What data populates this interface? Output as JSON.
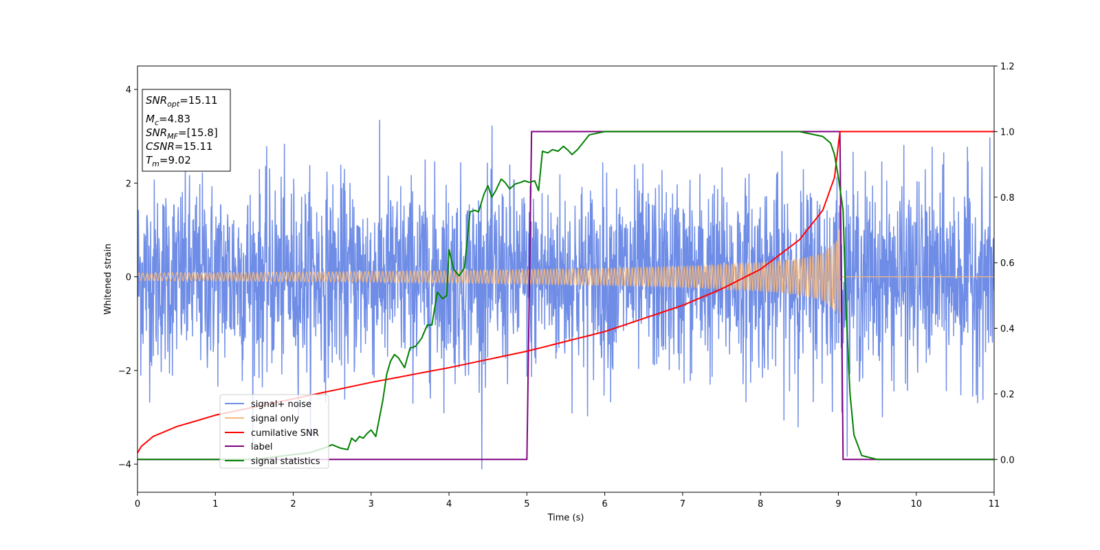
{
  "chart_data": {
    "type": "line",
    "xlabel": "Time (s)",
    "ylabel": "Whitened strain",
    "xlim": [
      0,
      11
    ],
    "ylim_left": [
      -4.6,
      4.5
    ],
    "ylim_right": [
      -0.1,
      1.2
    ],
    "x_ticks": [
      "0",
      "1",
      "2",
      "3",
      "4",
      "5",
      "6",
      "7",
      "8",
      "9",
      "10",
      "11"
    ],
    "y_left_ticks": [
      "4",
      "2",
      "0",
      "−2",
      "−4"
    ],
    "y_left_tick_values": [
      4,
      2,
      0,
      -2,
      -4
    ],
    "y_right_ticks": [
      "1.2",
      "1.0",
      "0.8",
      "0.6",
      "0.4",
      "0.2",
      "0.0"
    ],
    "y_right_tick_values": [
      1.2,
      1.0,
      0.8,
      0.6,
      0.4,
      0.2,
      0.0
    ],
    "info_box": {
      "snr_opt": {
        "main": "SNR",
        "sub": "opt",
        "value": "=15.11"
      },
      "mc": {
        "main": "M",
        "sub": "c",
        "value": "=4.83"
      },
      "snr_mf": {
        "main": "SNR",
        "sub": "MF",
        "value": "=[15.8]"
      },
      "csnr": {
        "main": "CSNR",
        "sub": "",
        "value": "=15.11"
      },
      "tm": {
        "main": "T",
        "sub": "m",
        "value": "=9.02"
      }
    },
    "legend_position": "lower-left",
    "series": [
      {
        "name": "signal+ noise",
        "color": "#6f8de6",
        "axis": "left",
        "description_values": {
          "std": 1.0,
          "x_range": [
            0,
            11
          ]
        }
      },
      {
        "name": "signal only",
        "color": "#f5b77a",
        "axis": "left",
        "envelope": {
          "t": [
            0,
            2,
            4,
            6,
            7,
            8,
            8.5,
            8.8,
            9.0,
            9.02
          ],
          "amp": [
            0.08,
            0.1,
            0.13,
            0.18,
            0.22,
            0.3,
            0.38,
            0.5,
            0.8,
            1.3
          ]
        },
        "end_time": 9.02
      },
      {
        "name": "cumilative SNR",
        "color": "#ff0000",
        "axis": "right",
        "points": [
          [
            0,
            0.02
          ],
          [
            0.05,
            0.04
          ],
          [
            0.2,
            0.07
          ],
          [
            0.5,
            0.1
          ],
          [
            1,
            0.135
          ],
          [
            1.5,
            0.16
          ],
          [
            2,
            0.185
          ],
          [
            3,
            0.235
          ],
          [
            4,
            0.28
          ],
          [
            5,
            0.33
          ],
          [
            6,
            0.39
          ],
          [
            7,
            0.47
          ],
          [
            7.5,
            0.52
          ],
          [
            8,
            0.58
          ],
          [
            8.5,
            0.67
          ],
          [
            8.8,
            0.76
          ],
          [
            8.95,
            0.86
          ],
          [
            9.02,
            1.0
          ],
          [
            11,
            1.0
          ]
        ]
      },
      {
        "name": "label",
        "color": "#800080",
        "axis": "right",
        "points": [
          [
            0,
            0.0
          ],
          [
            5.0,
            0.0
          ],
          [
            5.06,
            1.0
          ],
          [
            9.02,
            1.0
          ],
          [
            9.06,
            0.0
          ],
          [
            11,
            0.0
          ]
        ]
      },
      {
        "name": "signal statistics",
        "color": "#008000",
        "axis": "right",
        "points": [
          [
            0,
            0.0
          ],
          [
            0.5,
            0.0
          ],
          [
            1.0,
            0.0
          ],
          [
            1.5,
            0.0
          ],
          [
            2.0,
            0.015
          ],
          [
            2.2,
            0.02
          ],
          [
            2.4,
            0.035
          ],
          [
            2.5,
            0.045
          ],
          [
            2.6,
            0.035
          ],
          [
            2.7,
            0.03
          ],
          [
            2.75,
            0.065
          ],
          [
            2.8,
            0.055
          ],
          [
            2.85,
            0.07
          ],
          [
            2.9,
            0.065
          ],
          [
            2.95,
            0.08
          ],
          [
            3.0,
            0.09
          ],
          [
            3.06,
            0.07
          ],
          [
            3.15,
            0.18
          ],
          [
            3.2,
            0.26
          ],
          [
            3.25,
            0.3
          ],
          [
            3.3,
            0.32
          ],
          [
            3.35,
            0.31
          ],
          [
            3.43,
            0.28
          ],
          [
            3.5,
            0.34
          ],
          [
            3.57,
            0.345
          ],
          [
            3.65,
            0.37
          ],
          [
            3.72,
            0.41
          ],
          [
            3.78,
            0.41
          ],
          [
            3.85,
            0.51
          ],
          [
            3.92,
            0.49
          ],
          [
            3.97,
            0.5
          ],
          [
            4.0,
            0.64
          ],
          [
            4.06,
            0.58
          ],
          [
            4.13,
            0.56
          ],
          [
            4.2,
            0.585
          ],
          [
            4.27,
            0.755
          ],
          [
            4.33,
            0.76
          ],
          [
            4.38,
            0.755
          ],
          [
            4.45,
            0.81
          ],
          [
            4.5,
            0.835
          ],
          [
            4.55,
            0.8
          ],
          [
            4.6,
            0.82
          ],
          [
            4.67,
            0.855
          ],
          [
            4.72,
            0.845
          ],
          [
            4.78,
            0.825
          ],
          [
            4.85,
            0.84
          ],
          [
            4.92,
            0.845
          ],
          [
            4.97,
            0.85
          ],
          [
            5.03,
            0.845
          ],
          [
            5.1,
            0.85
          ],
          [
            5.15,
            0.82
          ],
          [
            5.2,
            0.94
          ],
          [
            5.27,
            0.935
          ],
          [
            5.33,
            0.945
          ],
          [
            5.4,
            0.94
          ],
          [
            5.47,
            0.955
          ],
          [
            5.52,
            0.945
          ],
          [
            5.58,
            0.93
          ],
          [
            5.65,
            0.945
          ],
          [
            5.7,
            0.96
          ],
          [
            5.8,
            0.99
          ],
          [
            5.9,
            0.995
          ],
          [
            6.0,
            1.0
          ],
          [
            6.5,
            1.0
          ],
          [
            7.0,
            1.0
          ],
          [
            7.5,
            1.0
          ],
          [
            8.0,
            1.0
          ],
          [
            8.5,
            1.0
          ],
          [
            8.8,
            0.985
          ],
          [
            8.9,
            0.965
          ],
          [
            8.95,
            0.93
          ],
          [
            9.0,
            0.86
          ],
          [
            9.06,
            0.76
          ],
          [
            9.1,
            0.45
          ],
          [
            9.15,
            0.2
          ],
          [
            9.2,
            0.075
          ],
          [
            9.3,
            0.012
          ],
          [
            9.5,
            0.0
          ],
          [
            11,
            0.0
          ]
        ]
      }
    ]
  }
}
